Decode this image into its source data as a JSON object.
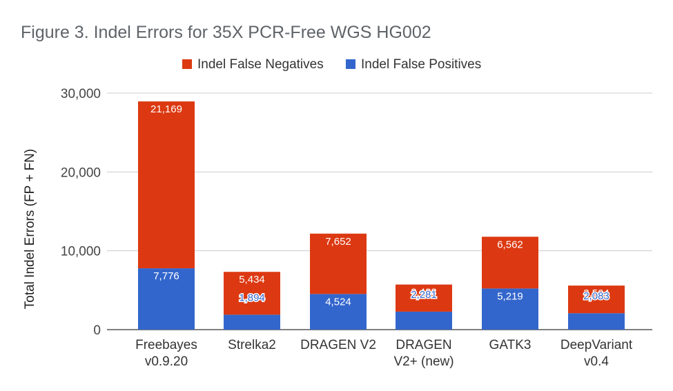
{
  "chart_data": {
    "type": "bar",
    "stacked": true,
    "title": "Figure 3. Indel Errors for 35X PCR-Free WGS HG002",
    "ylabel": "Total Indel Errors (FP + FN)",
    "xlabel": "",
    "ylim": [
      0,
      30000
    ],
    "yticks": [
      "0",
      "10,000",
      "20,000",
      "30,000"
    ],
    "grid": true,
    "legend_position": "top",
    "categories": [
      [
        "Freebayes",
        "v0.9.20"
      ],
      [
        "Strelka2"
      ],
      [
        "DRAGEN V2"
      ],
      [
        "DRAGEN",
        "V2+ (new)"
      ],
      [
        "GATK3"
      ],
      [
        "DeepVariant",
        "v0.4"
      ]
    ],
    "series": [
      {
        "name": "Indel False Positives",
        "color": "#3366cc",
        "values": [
          7776,
          1894,
          4524,
          2281,
          5219,
          2083
        ],
        "labels": [
          "7,776",
          "1,894",
          "4,524",
          "2,281",
          "5,219",
          "2,083"
        ]
      },
      {
        "name": "Indel False Negatives",
        "color": "#dc3912",
        "values": [
          21169,
          5434,
          7652,
          3438,
          6562,
          3504
        ],
        "labels": [
          "21,169",
          "5,434",
          "7,652",
          "3,438",
          "6,562",
          "3,504"
        ]
      }
    ],
    "legend_order": [
      "Indel False Negatives",
      "Indel False Positives"
    ]
  }
}
